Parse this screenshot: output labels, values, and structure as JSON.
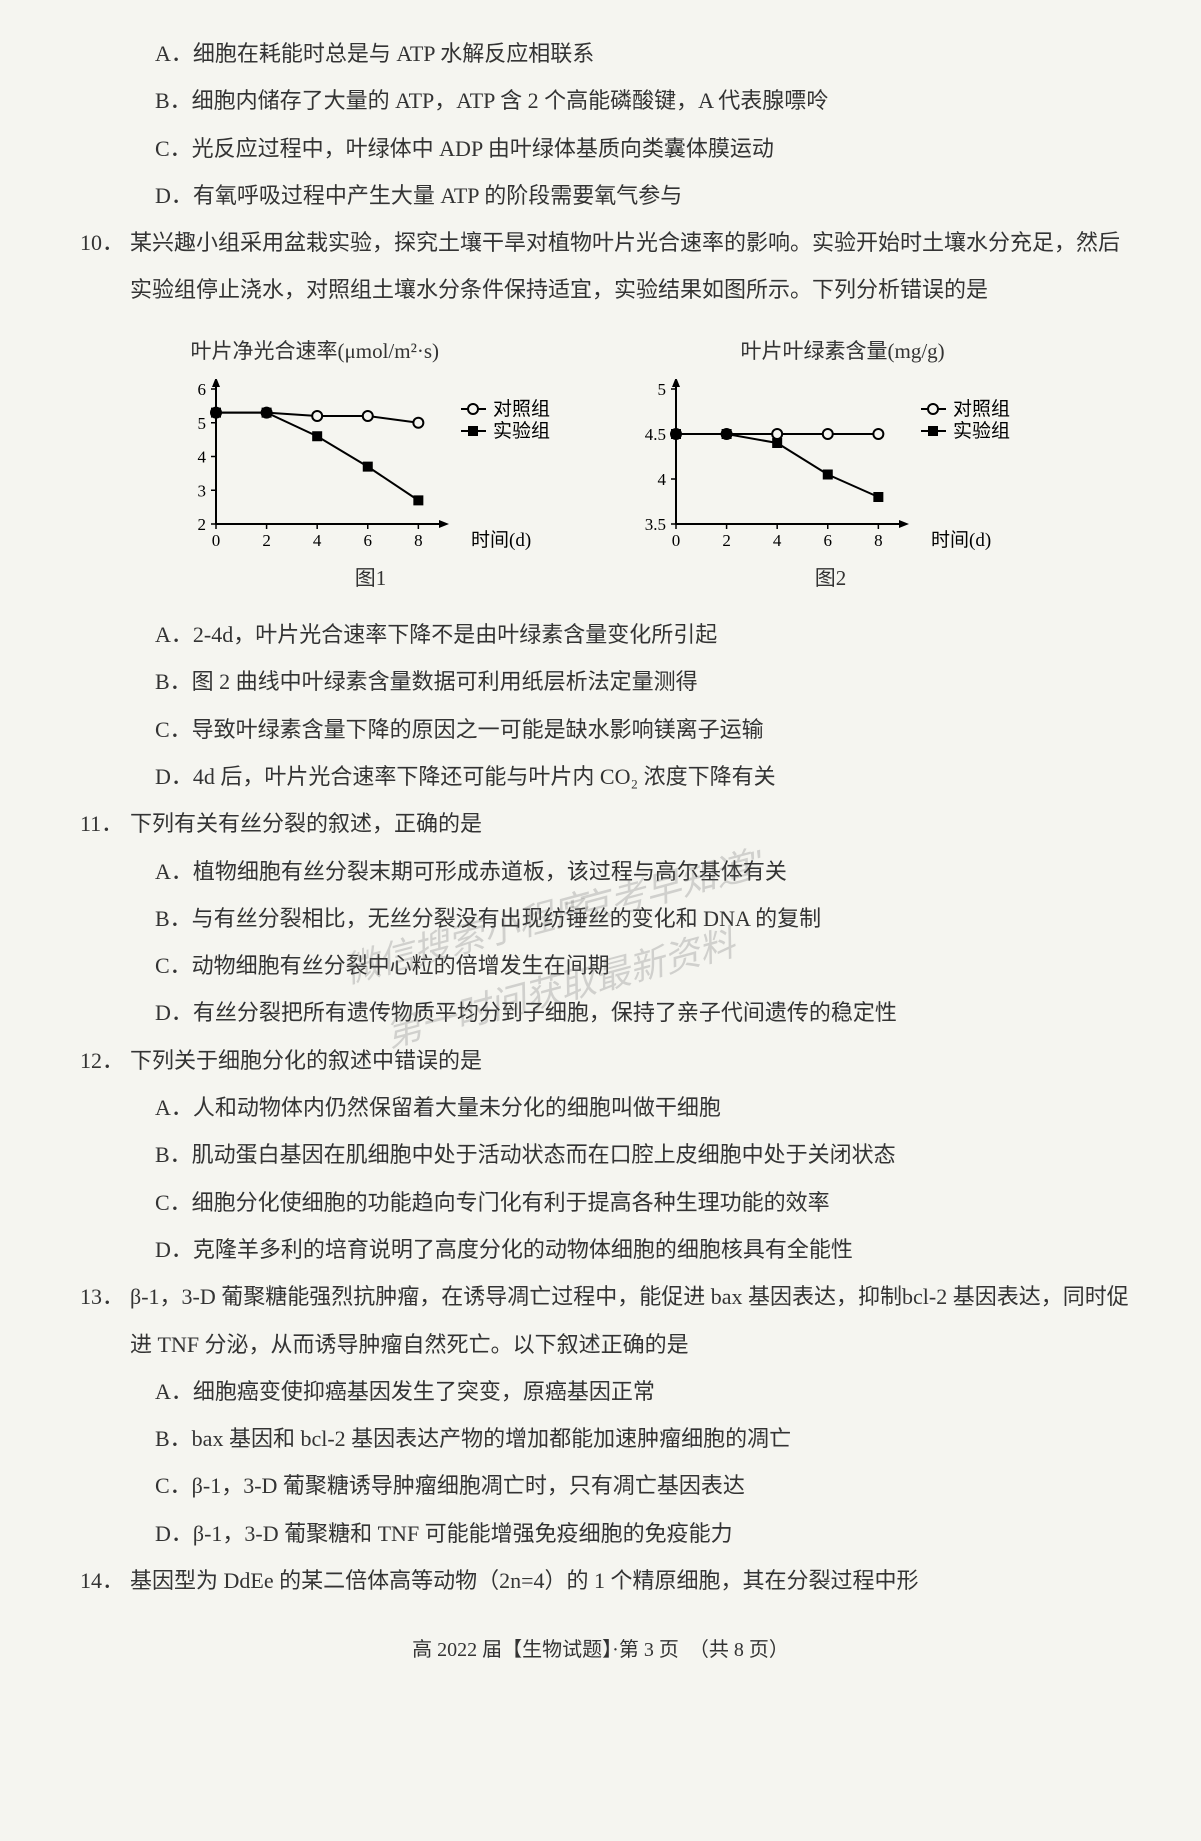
{
  "q9_options": {
    "A": "A．细胞在耗能时总是与 ATP 水解反应相联系",
    "B": "B．细胞内储存了大量的 ATP，ATP 含 2 个高能磷酸键，A 代表腺嘌呤",
    "C": "C．光反应过程中，叶绿体中 ADP 由叶绿体基质向类囊体膜运动",
    "D": "D．有氧呼吸过程中产生大量 ATP 的阶段需要氧气参与"
  },
  "q10": {
    "num": "10．",
    "text": "某兴趣小组采用盆栽实验，探究土壤干旱对植物叶片光合速率的影响。实验开始时土壤水分充足，然后实验组停止浇水，对照组土壤水分条件保持适宜，实验结果如图所示。下列分析错误的是",
    "options": {
      "A": "A．2-4d，叶片光合速率下降不是由叶绿素含量变化所引起",
      "B": "B．图 2 曲线中叶绿素含量数据可利用纸层析法定量测得",
      "C": "C．导致叶绿素含量下降的原因之一可能是缺水影响镁离子运输",
      "D": "D．4d 后，叶片光合速率下降还可能与叶片内 CO₂ 浓度下降有关"
    }
  },
  "chart1": {
    "title": "叶片净光合速率(μmol/m²·s)",
    "caption": "图1",
    "xlabel": "时间(d)",
    "legend": {
      "control": "对照组",
      "exp": "实验组"
    },
    "x_ticks": [
      0,
      2,
      4,
      6,
      8
    ],
    "y_ticks": [
      2,
      3,
      4,
      5,
      6
    ],
    "ylim": [
      2,
      6
    ],
    "xlim": [
      0,
      8.5
    ],
    "control_series": [
      {
        "x": 0,
        "y": 5.3
      },
      {
        "x": 2,
        "y": 5.3
      },
      {
        "x": 4,
        "y": 5.2
      },
      {
        "x": 6,
        "y": 5.2
      },
      {
        "x": 8,
        "y": 5.0
      }
    ],
    "exp_series": [
      {
        "x": 0,
        "y": 5.3
      },
      {
        "x": 2,
        "y": 5.3
      },
      {
        "x": 4,
        "y": 4.6
      },
      {
        "x": 6,
        "y": 3.7
      },
      {
        "x": 8,
        "y": 2.7
      }
    ],
    "line_color": "#000000",
    "control_marker": "circle_open",
    "exp_marker": "square_filled",
    "bg_color": "#f5f5f0",
    "axis_fontsize": 17
  },
  "chart2": {
    "title": "叶片叶绿素含量(mg/g)",
    "caption": "图2",
    "xlabel": "时间(d)",
    "legend": {
      "control": "对照组",
      "exp": "实验组"
    },
    "x_ticks": [
      0,
      2,
      4,
      6,
      8
    ],
    "y_ticks": [
      3.5,
      4,
      4.5,
      5
    ],
    "ylim": [
      3.5,
      5
    ],
    "xlim": [
      0,
      8.5
    ],
    "control_series": [
      {
        "x": 0,
        "y": 4.5
      },
      {
        "x": 2,
        "y": 4.5
      },
      {
        "x": 4,
        "y": 4.5
      },
      {
        "x": 6,
        "y": 4.5
      },
      {
        "x": 8,
        "y": 4.5
      }
    ],
    "exp_series": [
      {
        "x": 0,
        "y": 4.5
      },
      {
        "x": 2,
        "y": 4.5
      },
      {
        "x": 4,
        "y": 4.4
      },
      {
        "x": 6,
        "y": 4.05
      },
      {
        "x": 8,
        "y": 3.8
      }
    ],
    "line_color": "#000000",
    "control_marker": "circle_open",
    "exp_marker": "square_filled",
    "bg_color": "#f5f5f0",
    "axis_fontsize": 17
  },
  "q11": {
    "num": "11．",
    "text": "下列有关有丝分裂的叙述，正确的是",
    "options": {
      "A": "A．植物细胞有丝分裂末期可形成赤道板，该过程与高尔基体有关",
      "B": "B．与有丝分裂相比，无丝分裂没有出现纺锤丝的变化和 DNA 的复制",
      "C": "C．动物细胞有丝分裂中心粒的倍增发生在间期",
      "D": "D．有丝分裂把所有遗传物质平均分到子细胞，保持了亲子代间遗传的稳定性"
    }
  },
  "q12": {
    "num": "12．",
    "text": "下列关于细胞分化的叙述中错误的是",
    "options": {
      "A": "A．人和动物体内仍然保留着大量未分化的细胞叫做干细胞",
      "B": "B．肌动蛋白基因在肌细胞中处于活动状态而在口腔上皮细胞中处于关闭状态",
      "C": "C．细胞分化使细胞的功能趋向专门化有利于提高各种生理功能的效率",
      "D": "D．克隆羊多利的培育说明了高度分化的动物体细胞的细胞核具有全能性"
    }
  },
  "q13": {
    "num": "13．",
    "text": "β-1，3-D 葡聚糖能强烈抗肿瘤，在诱导凋亡过程中，能促进 bax 基因表达，抑制bcl-2 基因表达，同时促进 TNF 分泌，从而诱导肿瘤自然死亡。以下叙述正确的是",
    "options": {
      "A": "A．细胞癌变使抑癌基因发生了突变，原癌基因正常",
      "B": "B．bax 基因和 bcl-2 基因表达产物的增加都能加速肿瘤细胞的凋亡",
      "C": "C．β-1，3-D 葡聚糖诱导肿瘤细胞凋亡时，只有凋亡基因表达",
      "D": "D．β-1，3-D 葡聚糖和 TNF 可能能增强免疫细胞的免疫能力"
    }
  },
  "q14": {
    "num": "14．",
    "text": "基因型为 DdEe 的某二倍体高等动物（2n=4）的 1 个精原细胞，其在分裂过程中形"
  },
  "footer": "高 2022 届【生物试题】·第 3 页　（共 8 页）",
  "watermarks": {
    "w1": "\"京考早知道\"",
    "w2": "微信搜索小程序",
    "w3": "第一时间获取最新资料"
  }
}
